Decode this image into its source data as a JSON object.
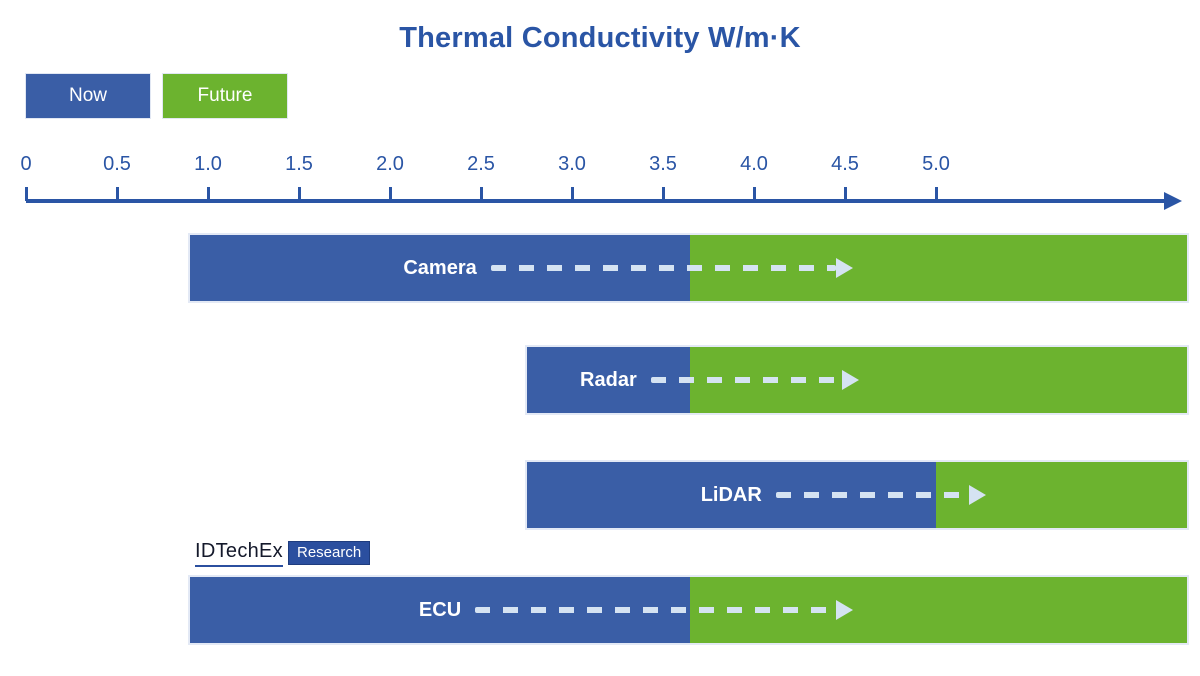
{
  "title": "Thermal Conductivity W/m·K",
  "legend": {
    "now_label": "Now",
    "future_label": "Future"
  },
  "logo": {
    "brand": "IDTechEx",
    "badge": "Research"
  },
  "colors": {
    "now_blue": "#3a5ea6",
    "future_green": "#6cb32f",
    "axis_navy": "#2a55a5",
    "dash_light": "#d5e3f2",
    "logo_badge_blue": "#2b4f9f",
    "background": "#ffffff"
  },
  "chart_data": {
    "type": "bar",
    "orientation": "horizontal",
    "title": "Thermal Conductivity W/m·K",
    "unit": "W/m·K",
    "axis": {
      "min": 0,
      "max": 5,
      "tick_step": 0.5,
      "tick_labels": [
        "0",
        "0.5",
        "1.0",
        "1.5",
        "2.0",
        "2.5",
        "3.0",
        "3.5",
        "4.0",
        "4.5",
        "5.0"
      ],
      "has_arrow": true,
      "bars_extend_beyond_axis": true
    },
    "legend": [
      {
        "label": "Now",
        "color": "#3a5ea6"
      },
      {
        "label": "Future",
        "color": "#6cb32f"
      }
    ],
    "series": [
      {
        "category": "Camera",
        "now_start": 0.9,
        "now_end": 3.65,
        "future_open_ended": true,
        "arrow_end": 4.55
      },
      {
        "category": "Radar",
        "now_start": 2.75,
        "now_end": 3.65,
        "future_open_ended": true,
        "arrow_end": 4.58
      },
      {
        "category": "LiDAR",
        "now_start": 2.75,
        "now_end": 5.0,
        "future_open_ended": true,
        "arrow_end": 5.28
      },
      {
        "category": "ECU",
        "now_start": 0.9,
        "now_end": 3.65,
        "future_open_ended": true,
        "arrow_end": 4.55
      }
    ]
  }
}
